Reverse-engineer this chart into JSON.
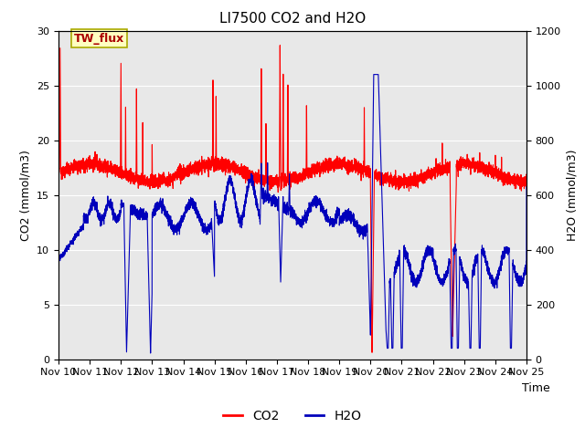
{
  "title": "LI7500 CO2 and H2O",
  "xlabel": "Time",
  "ylabel_left": "CO2 (mmol/m3)",
  "ylabel_right": "H2O (mmol/m3)",
  "xlim": [
    0,
    15
  ],
  "ylim_left": [
    0,
    30
  ],
  "ylim_right": [
    0,
    1200
  ],
  "yticks_left": [
    0,
    5,
    10,
    15,
    20,
    25,
    30
  ],
  "yticks_right": [
    0,
    200,
    400,
    600,
    800,
    1000,
    1200
  ],
  "xtick_labels": [
    "Nov 10",
    "Nov 11",
    "Nov 12",
    "Nov 13",
    "Nov 14",
    "Nov 15",
    "Nov 16",
    "Nov 17",
    "Nov 18",
    "Nov 19",
    "Nov 20",
    "Nov 21",
    "Nov 22",
    "Nov 23",
    "Nov 24",
    "Nov 25"
  ],
  "co2_color": "#FF0000",
  "h2o_color": "#0000BB",
  "background_color": "#E8E8E8",
  "legend_label_co2": "CO2",
  "legend_label_h2o": "H2O",
  "annotation_text": "TW_flux",
  "linewidth": 0.8,
  "title_fontsize": 11,
  "tick_fontsize": 8,
  "axis_label_fontsize": 9
}
